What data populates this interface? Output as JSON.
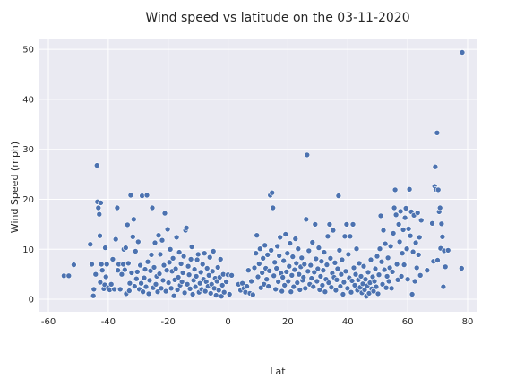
{
  "chart_data": {
    "type": "scatter",
    "title": "Wind speed vs latitude on the 03-11-2020",
    "xlabel": "Lat",
    "ylabel": "Wind Speed (mph)",
    "xlim": [
      -63,
      83
    ],
    "ylim": [
      -2.5,
      52
    ],
    "xticks": [
      -60,
      -40,
      -20,
      0,
      20,
      40,
      60,
      80
    ],
    "yticks": [
      0,
      10,
      20,
      30,
      40,
      50
    ],
    "grid": true,
    "legend": "none",
    "colors": {
      "background": "#eaeaf2",
      "grid": "#ffffff",
      "marker": "#4c72b0",
      "text": "#262626"
    },
    "points": [
      [
        -54.8,
        4.7
      ],
      [
        -53.2,
        4.7
      ],
      [
        -51.5,
        6.9
      ],
      [
        -46.0,
        11.0
      ],
      [
        -45.5,
        7.0
      ],
      [
        -45.0,
        0.7
      ],
      [
        -44.8,
        2.0
      ],
      [
        -44.2,
        5.0
      ],
      [
        -43.8,
        26.8
      ],
      [
        -43.6,
        19.5
      ],
      [
        -43.3,
        18.3
      ],
      [
        -43.0,
        17.0
      ],
      [
        -42.8,
        12.7
      ],
      [
        -42.7,
        3.4
      ],
      [
        -42.5,
        19.3
      ],
      [
        -42.3,
        7.0
      ],
      [
        -42.0,
        5.8
      ],
      [
        -41.5,
        2.1
      ],
      [
        -41.2,
        2.9
      ],
      [
        -41.0,
        10.3
      ],
      [
        -40.8,
        4.5
      ],
      [
        -40.5,
        7.0
      ],
      [
        -40.0,
        2.3
      ],
      [
        -39.5,
        1.9
      ],
      [
        -39.0,
        3.0
      ],
      [
        -38.5,
        8.0
      ],
      [
        -38.0,
        2.0
      ],
      [
        -37.5,
        12.0
      ],
      [
        -37.0,
        18.3
      ],
      [
        -36.8,
        5.8
      ],
      [
        -36.5,
        7.0
      ],
      [
        -36.0,
        2.0
      ],
      [
        -35.5,
        5.0
      ],
      [
        -35.0,
        7.0
      ],
      [
        -34.8,
        10.0
      ],
      [
        -34.5,
        5.9
      ],
      [
        -34.2,
        10.3
      ],
      [
        -34.0,
        1.1
      ],
      [
        -33.6,
        14.9
      ],
      [
        -33.3,
        7.2
      ],
      [
        -33.0,
        1.7
      ],
      [
        -32.8,
        3.2
      ],
      [
        -32.5,
        20.8
      ],
      [
        -32.2,
        5.3
      ],
      [
        -31.8,
        12.5
      ],
      [
        -31.5,
        16.0
      ],
      [
        -31.2,
        2.6
      ],
      [
        -30.9,
        9.6
      ],
      [
        -30.6,
        4.1
      ],
      [
        -30.3,
        5.5
      ],
      [
        -30.0,
        11.5
      ],
      [
        -29.6,
        2.0
      ],
      [
        -29.3,
        6.8
      ],
      [
        -29.0,
        3.2
      ],
      [
        -28.7,
        20.7
      ],
      [
        -28.4,
        1.5
      ],
      [
        -28.0,
        4.3
      ],
      [
        -27.7,
        6.0
      ],
      [
        -27.4,
        2.5
      ],
      [
        -27.1,
        20.8
      ],
      [
        -26.8,
        7.5
      ],
      [
        -26.5,
        1.1
      ],
      [
        -26.2,
        3.8
      ],
      [
        -25.9,
        5.7
      ],
      [
        -25.6,
        8.9
      ],
      [
        -25.3,
        18.3
      ],
      [
        -25.0,
        2.3
      ],
      [
        -24.7,
        6.4
      ],
      [
        -24.4,
        11.3
      ],
      [
        -24.1,
        3.0
      ],
      [
        -23.8,
        4.6
      ],
      [
        -23.5,
        1.5
      ],
      [
        -23.2,
        12.8
      ],
      [
        -22.9,
        5.1
      ],
      [
        -22.6,
        9.0
      ],
      [
        -22.3,
        2.2
      ],
      [
        -22.0,
        11.8
      ],
      [
        -21.7,
        3.8
      ],
      [
        -21.4,
        6.8
      ],
      [
        -21.1,
        17.2
      ],
      [
        -20.8,
        1.6
      ],
      [
        -20.5,
        5.8
      ],
      [
        -20.2,
        14.0
      ],
      [
        -19.9,
        3.3
      ],
      [
        -19.6,
        7.4
      ],
      [
        -19.3,
        10.0
      ],
      [
        -19.0,
        2.2
      ],
      [
        -18.7,
        5.6
      ],
      [
        -18.4,
        8.2
      ],
      [
        -18.1,
        0.7
      ],
      [
        -17.8,
        3.9
      ],
      [
        -17.5,
        6.1
      ],
      [
        -17.2,
        12.4
      ],
      [
        -16.9,
        1.9
      ],
      [
        -16.6,
        4.4
      ],
      [
        -16.3,
        9.4
      ],
      [
        -16.0,
        2.8
      ],
      [
        -15.7,
        7.1
      ],
      [
        -15.4,
        3.5
      ],
      [
        -15.1,
        5.3
      ],
      [
        -14.8,
        8.6
      ],
      [
        -14.5,
        1.3
      ],
      [
        -14.2,
        13.8
      ],
      [
        -13.9,
        14.3
      ],
      [
        -13.6,
        3.0
      ],
      [
        -13.3,
        6.6
      ],
      [
        -13.0,
        4.9
      ],
      [
        -12.7,
        2.1
      ],
      [
        -12.4,
        8.0
      ],
      [
        -12.1,
        10.5
      ],
      [
        -11.8,
        1.0
      ],
      [
        -11.5,
        3.8
      ],
      [
        -11.2,
        6.0
      ],
      [
        -10.9,
        2.5
      ],
      [
        -10.6,
        4.6
      ],
      [
        -10.3,
        7.9
      ],
      [
        -10.0,
        9.0
      ],
      [
        -9.7,
        1.4
      ],
      [
        -9.4,
        3.2
      ],
      [
        -9.1,
        5.4
      ],
      [
        -8.8,
        2.0
      ],
      [
        -8.5,
        7.0
      ],
      [
        -8.2,
        4.0
      ],
      [
        -7.9,
        9.2
      ],
      [
        -7.6,
        1.6
      ],
      [
        -7.3,
        3.5
      ],
      [
        -7.0,
        6.2
      ],
      [
        -6.7,
        2.6
      ],
      [
        -6.4,
        4.8
      ],
      [
        -6.1,
        8.4
      ],
      [
        -5.8,
        1.2
      ],
      [
        -5.5,
        3.0
      ],
      [
        -5.2,
        5.6
      ],
      [
        -4.9,
        9.6
      ],
      [
        -4.6,
        2.2
      ],
      [
        -4.3,
        4.2
      ],
      [
        -4.0,
        0.8
      ],
      [
        -3.7,
        3.6
      ],
      [
        -3.4,
        6.4
      ],
      [
        -3.1,
        1.8
      ],
      [
        -2.8,
        4.4
      ],
      [
        -2.5,
        8.0
      ],
      [
        -2.2,
        0.6
      ],
      [
        -1.9,
        2.8
      ],
      [
        -1.6,
        5.0
      ],
      [
        -1.3,
        1.4
      ],
      [
        -0.6,
        3.5
      ],
      [
        0.0,
        4.9
      ],
      [
        0.5,
        1.0
      ],
      [
        1.2,
        4.8
      ],
      [
        3.5,
        3.0
      ],
      [
        4.2,
        1.8
      ],
      [
        4.8,
        3.2
      ],
      [
        5.3,
        2.2
      ],
      [
        5.8,
        1.4
      ],
      [
        6.3,
        2.6
      ],
      [
        6.8,
        5.8
      ],
      [
        7.3,
        1.2
      ],
      [
        7.8,
        3.6
      ],
      [
        8.3,
        0.9
      ],
      [
        8.8,
        6.3
      ],
      [
        9.3,
        9.2
      ],
      [
        9.6,
        12.8
      ],
      [
        10.0,
        4.5
      ],
      [
        10.4,
        7.1
      ],
      [
        10.7,
        10.1
      ],
      [
        11.0,
        2.3
      ],
      [
        11.4,
        5.3
      ],
      [
        11.7,
        8.2
      ],
      [
        12.0,
        3.0
      ],
      [
        12.3,
        10.8
      ],
      [
        12.6,
        6.2
      ],
      [
        12.9,
        4.0
      ],
      [
        13.2,
        8.9
      ],
      [
        13.5,
        2.6
      ],
      [
        13.8,
        5.7
      ],
      [
        14.1,
        20.8
      ],
      [
        14.4,
        9.8
      ],
      [
        14.7,
        21.3
      ],
      [
        15.0,
        18.3
      ],
      [
        15.3,
        4.7
      ],
      [
        15.6,
        7.4
      ],
      [
        15.9,
        2.0
      ],
      [
        16.2,
        6.2
      ],
      [
        16.5,
        10.6
      ],
      [
        16.8,
        3.5
      ],
      [
        17.1,
        8.7
      ],
      [
        17.4,
        12.4
      ],
      [
        17.7,
        5.2
      ],
      [
        18.0,
        1.6
      ],
      [
        18.3,
        4.4
      ],
      [
        18.6,
        7.7
      ],
      [
        18.9,
        2.8
      ],
      [
        19.2,
        13.0
      ],
      [
        19.5,
        5.5
      ],
      [
        19.8,
        9.2
      ],
      [
        20.1,
        3.6
      ],
      [
        20.4,
        6.6
      ],
      [
        20.7,
        11.2
      ],
      [
        21.0,
        1.5
      ],
      [
        21.3,
        4.8
      ],
      [
        21.6,
        8.5
      ],
      [
        21.9,
        2.5
      ],
      [
        22.2,
        5.9
      ],
      [
        22.5,
        12.1
      ],
      [
        22.8,
        7.2
      ],
      [
        23.1,
        3.3
      ],
      [
        23.4,
        10.1
      ],
      [
        23.7,
        5.0
      ],
      [
        24.0,
        1.9
      ],
      [
        24.3,
        6.5
      ],
      [
        24.6,
        8.3
      ],
      [
        24.9,
        3.8
      ],
      [
        25.2,
        4.4
      ],
      [
        25.5,
        7.0
      ],
      [
        25.8,
        2.2
      ],
      [
        26.1,
        16.0
      ],
      [
        26.4,
        28.9
      ],
      [
        26.7,
        5.6
      ],
      [
        27.0,
        9.7
      ],
      [
        27.3,
        3.0
      ],
      [
        27.6,
        6.8
      ],
      [
        27.9,
        4.2
      ],
      [
        28.2,
        11.4
      ],
      [
        28.5,
        2.5
      ],
      [
        28.8,
        5.4
      ],
      [
        29.1,
        15.0
      ],
      [
        29.4,
        8.1
      ],
      [
        29.7,
        3.6
      ],
      [
        30.0,
        6.1
      ],
      [
        30.3,
        10.3
      ],
      [
        30.6,
        1.9
      ],
      [
        30.9,
        4.6
      ],
      [
        31.2,
        7.6
      ],
      [
        31.5,
        2.8
      ],
      [
        31.8,
        5.8
      ],
      [
        32.1,
        9.4
      ],
      [
        32.4,
        1.5
      ],
      [
        32.7,
        4.0
      ],
      [
        33.0,
        6.9
      ],
      [
        33.3,
        12.6
      ],
      [
        33.6,
        3.3
      ],
      [
        33.9,
        15.0
      ],
      [
        34.2,
        8.2
      ],
      [
        34.5,
        2.4
      ],
      [
        34.8,
        5.2
      ],
      [
        35.1,
        13.8
      ],
      [
        35.4,
        4.4
      ],
      [
        35.7,
        7.3
      ],
      [
        36.0,
        1.8
      ],
      [
        36.3,
        3.9
      ],
      [
        36.6,
        6.1
      ],
      [
        36.9,
        20.7
      ],
      [
        37.2,
        9.8
      ],
      [
        37.5,
        2.6
      ],
      [
        37.8,
        5.0
      ],
      [
        38.1,
        7.9
      ],
      [
        38.4,
        1.0
      ],
      [
        38.7,
        3.4
      ],
      [
        39.0,
        12.6
      ],
      [
        39.3,
        5.6
      ],
      [
        39.6,
        15.0
      ],
      [
        39.9,
        2.2
      ],
      [
        40.2,
        9.0
      ],
      [
        40.5,
        4.3
      ],
      [
        40.8,
        12.6
      ],
      [
        41.1,
        1.4
      ],
      [
        41.4,
        3.7
      ],
      [
        41.7,
        15.0
      ],
      [
        42.0,
        6.3
      ],
      [
        42.3,
        2.8
      ],
      [
        42.6,
        5.0
      ],
      [
        42.9,
        10.1
      ],
      [
        43.2,
        1.8
      ],
      [
        43.5,
        3.9
      ],
      [
        43.8,
        7.2
      ],
      [
        44.1,
        2.4
      ],
      [
        44.4,
        4.6
      ],
      [
        44.7,
        1.3
      ],
      [
        45.0,
        3.1
      ],
      [
        45.3,
        6.6
      ],
      [
        45.6,
        1.9
      ],
      [
        45.9,
        4.0
      ],
      [
        46.2,
        0.6
      ],
      [
        46.5,
        2.7
      ],
      [
        46.8,
        5.4
      ],
      [
        47.1,
        1.2
      ],
      [
        47.4,
        3.3
      ],
      [
        47.7,
        7.9
      ],
      [
        48.0,
        2.1
      ],
      [
        48.3,
        4.5
      ],
      [
        48.6,
        1.6
      ],
      [
        48.9,
        3.6
      ],
      [
        49.2,
        6.1
      ],
      [
        49.5,
        2.5
      ],
      [
        49.8,
        8.6
      ],
      [
        50.1,
        1.1
      ],
      [
        50.4,
        4.9
      ],
      [
        50.7,
        10.1
      ],
      [
        51.0,
        16.7
      ],
      [
        51.3,
        7.5
      ],
      [
        51.6,
        3.0
      ],
      [
        51.9,
        13.8
      ],
      [
        52.2,
        5.9
      ],
      [
        52.5,
        11.1
      ],
      [
        52.8,
        2.3
      ],
      [
        53.1,
        4.6
      ],
      [
        53.4,
        8.3
      ],
      [
        53.7,
        3.6
      ],
      [
        54.0,
        6.3
      ],
      [
        54.3,
        10.6
      ],
      [
        54.6,
        2.2
      ],
      [
        54.9,
        5.5
      ],
      [
        55.2,
        13.2
      ],
      [
        55.5,
        18.3
      ],
      [
        55.8,
        21.9
      ],
      [
        56.1,
        16.9
      ],
      [
        56.4,
        7.0
      ],
      [
        56.7,
        3.9
      ],
      [
        57.0,
        15.0
      ],
      [
        57.3,
        11.5
      ],
      [
        57.6,
        17.6
      ],
      [
        57.9,
        4.6
      ],
      [
        58.2,
        9.2
      ],
      [
        58.5,
        13.9
      ],
      [
        58.8,
        6.9
      ],
      [
        59.1,
        16.3
      ],
      [
        59.4,
        18.2
      ],
      [
        59.7,
        10.1
      ],
      [
        60.0,
        4.0
      ],
      [
        60.3,
        14.1
      ],
      [
        60.6,
        22.0
      ],
      [
        60.9,
        12.7
      ],
      [
        61.2,
        17.5
      ],
      [
        61.5,
        1.0
      ],
      [
        61.8,
        9.5
      ],
      [
        62.1,
        16.8
      ],
      [
        62.4,
        3.6
      ],
      [
        62.7,
        11.3
      ],
      [
        63.0,
        6.3
      ],
      [
        63.3,
        17.3
      ],
      [
        63.6,
        8.9
      ],
      [
        63.9,
        12.4
      ],
      [
        64.2,
        4.8
      ],
      [
        64.5,
        15.8
      ],
      [
        66.5,
        5.8
      ],
      [
        68.2,
        15.2
      ],
      [
        68.6,
        7.6
      ],
      [
        69.0,
        22.6
      ],
      [
        69.2,
        26.5
      ],
      [
        69.4,
        22.0
      ],
      [
        69.6,
        33.3
      ],
      [
        69.8,
        33.3
      ],
      [
        70.0,
        7.8
      ],
      [
        70.2,
        21.9
      ],
      [
        70.5,
        17.5
      ],
      [
        70.8,
        18.3
      ],
      [
        71.0,
        10.2
      ],
      [
        71.3,
        15.1
      ],
      [
        71.6,
        12.5
      ],
      [
        71.9,
        2.5
      ],
      [
        72.2,
        9.7
      ],
      [
        72.6,
        6.5
      ],
      [
        73.5,
        9.8
      ],
      [
        78.0,
        6.2
      ],
      [
        78.2,
        49.4
      ]
    ]
  }
}
